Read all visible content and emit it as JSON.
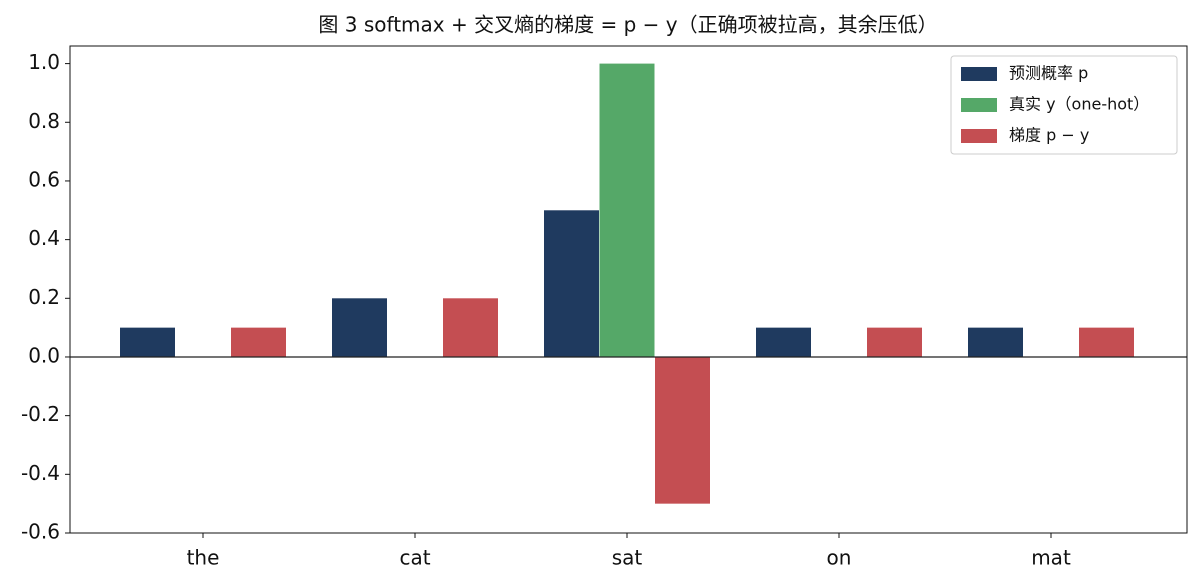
{
  "chart_data": {
    "type": "bar",
    "title": "图 3  softmax + 交叉熵的梯度 = p − y（正确项被拉高，其余压低）",
    "categories": [
      "the",
      "cat",
      "sat",
      "on",
      "mat"
    ],
    "series": [
      {
        "name": "预测概率 p",
        "color": "#1f3a5f",
        "values": [
          0.1,
          0.2,
          0.5,
          0.1,
          0.1
        ]
      },
      {
        "name": "真实 y（one-hot）",
        "color": "#55a868",
        "values": [
          0,
          0,
          1,
          0,
          0
        ]
      },
      {
        "name": "梯度 p − y",
        "color": "#c44e52",
        "values": [
          0.1,
          0.2,
          -0.5,
          0.1,
          0.1
        ]
      }
    ],
    "ylim": [
      -0.6,
      1.06
    ],
    "yticks": [
      -0.6,
      -0.4,
      -0.2,
      {
        "value": 0,
        "label": "0.0"
      },
      0.2,
      0.4,
      0.6,
      0.8,
      {
        "value": 1,
        "label": "1.0"
      }
    ],
    "grid": false,
    "legend": "upper right"
  }
}
